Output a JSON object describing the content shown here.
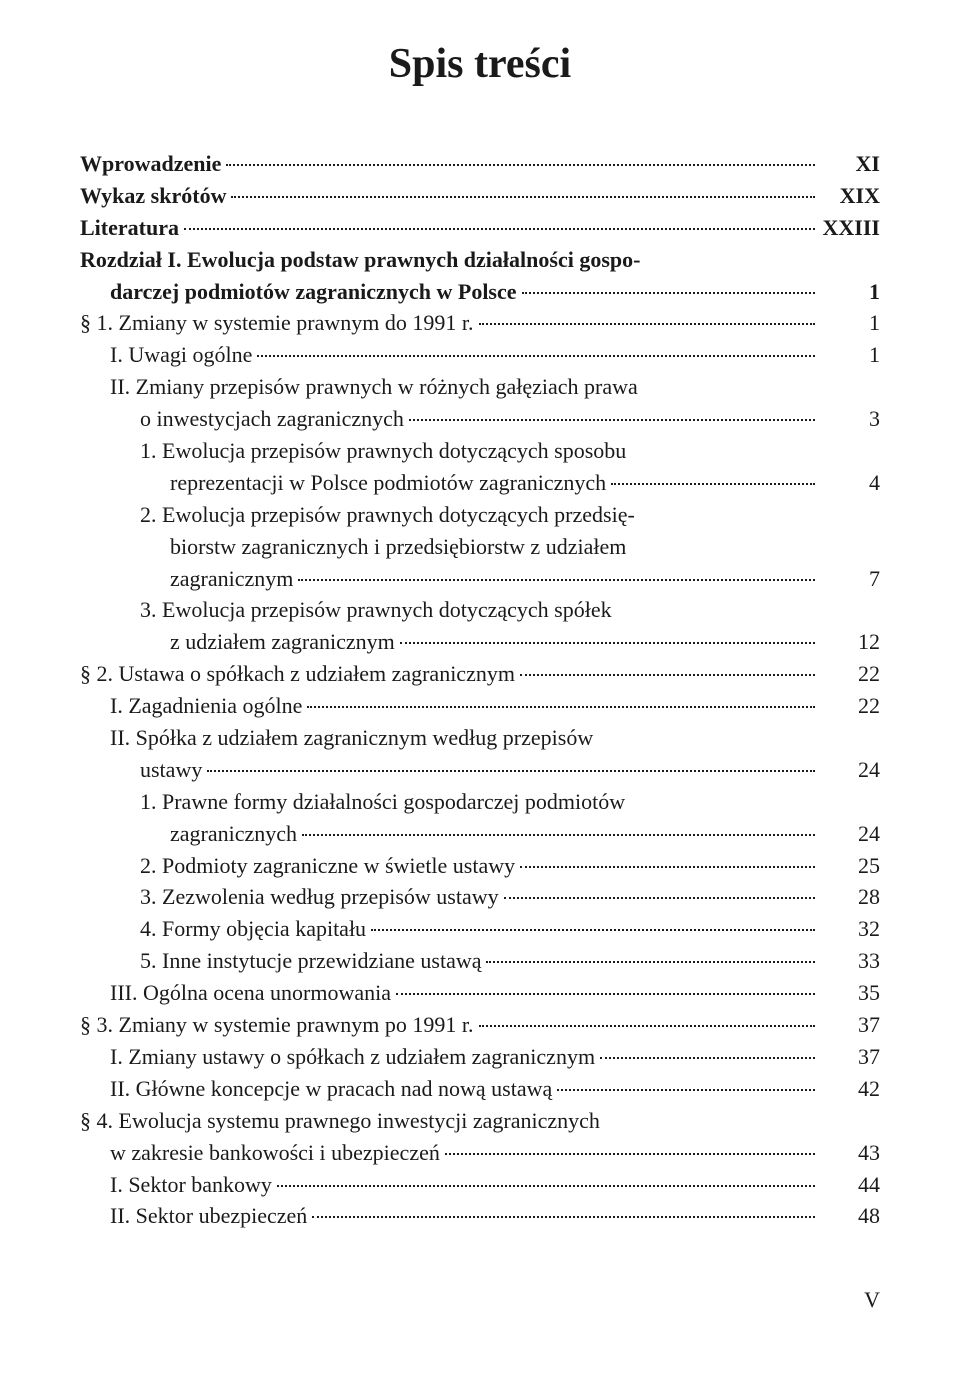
{
  "title": "Spis treści",
  "footer": "V",
  "colors": {
    "text": "#1a1a1a",
    "background": "#ffffff",
    "leader": "#1a1a1a"
  },
  "typography": {
    "title_fontsize": 42,
    "body_fontsize": 22,
    "line_height": 1.45,
    "font_family": "Georgia, Times New Roman, serif"
  },
  "entries": [
    {
      "text": "Wprowadzenie",
      "page": "XI",
      "indent": 0,
      "bold": true
    },
    {
      "text": "Wykaz skrótów",
      "page": "XIX",
      "indent": 0,
      "bold": true
    },
    {
      "text": "Literatura",
      "page": "XXIII",
      "indent": 0,
      "bold": true
    },
    {
      "text_lines": [
        "Rozdział I. Ewolucja podstaw prawnych działalności gospo-",
        "darczej podmiotów zagranicznych w Polsce"
      ],
      "page": "1",
      "indent": 0,
      "bold": true,
      "cont_indent": 1
    },
    {
      "text": "§ 1. Zmiany w systemie prawnym do 1991 r. ",
      "page": "1",
      "indent": 0
    },
    {
      "text": "I. Uwagi ogólne",
      "page": "1",
      "indent": 1
    },
    {
      "text_lines": [
        "II. Zmiany przepisów prawnych w różnych gałęziach prawa",
        "o inwestycjach zagranicznych"
      ],
      "page": "3",
      "indent": 1,
      "cont_indent": 2
    },
    {
      "text_lines": [
        "1. Ewolucja przepisów prawnych dotyczących sposobu",
        "reprezentacji w Polsce podmiotów zagranicznych"
      ],
      "page": "4",
      "indent": 2,
      "cont_indent": 3
    },
    {
      "text_lines": [
        "2. Ewolucja przepisów prawnych dotyczących przedsię-",
        "biorstw zagranicznych i przedsiębiorstw z udziałem",
        "zagranicznym"
      ],
      "page": "7",
      "indent": 2,
      "cont_indent": 3
    },
    {
      "text_lines": [
        "3. Ewolucja przepisów prawnych dotyczących spółek",
        "z udziałem zagranicznym"
      ],
      "page": "12",
      "indent": 2,
      "cont_indent": 3
    },
    {
      "text": "§ 2. Ustawa o spółkach z udziałem zagranicznym",
      "page": "22",
      "indent": 0
    },
    {
      "text": "I. Zagadnienia ogólne",
      "page": "22",
      "indent": 1
    },
    {
      "text_lines": [
        "II. Spółka z udziałem zagranicznym według przepisów",
        "ustawy"
      ],
      "page": "24",
      "indent": 1,
      "cont_indent": 2
    },
    {
      "text_lines": [
        "1. Prawne formy działalności gospodarczej podmiotów",
        "zagranicznych"
      ],
      "page": "24",
      "indent": 2,
      "cont_indent": 3
    },
    {
      "text": "2. Podmioty zagraniczne w świetle ustawy",
      "page": "25",
      "indent": 2
    },
    {
      "text": "3. Zezwolenia według przepisów ustawy",
      "page": "28",
      "indent": 2
    },
    {
      "text": "4. Formy objęcia kapitału",
      "page": "32",
      "indent": 2
    },
    {
      "text": "5. Inne instytucje przewidziane ustawą",
      "page": "33",
      "indent": 2
    },
    {
      "text": "III. Ogólna ocena unormowania",
      "page": "35",
      "indent": 1
    },
    {
      "text": "§ 3. Zmiany w systemie prawnym po 1991 r. ",
      "page": "37",
      "indent": 0
    },
    {
      "text": "I. Zmiany ustawy o spółkach z udziałem zagranicznym",
      "page": "37",
      "indent": 1
    },
    {
      "text": "II. Główne koncepcje w pracach nad nową ustawą",
      "page": "42",
      "indent": 1
    },
    {
      "text_lines": [
        "§ 4. Ewolucja systemu prawnego inwestycji zagranicznych",
        "w zakresie bankowości i ubezpieczeń"
      ],
      "page": "43",
      "indent": 0,
      "cont_indent": 1
    },
    {
      "text": "I. Sektor bankowy",
      "page": "44",
      "indent": 1
    },
    {
      "text": "II. Sektor ubezpieczeń",
      "page": "48",
      "indent": 1
    }
  ]
}
